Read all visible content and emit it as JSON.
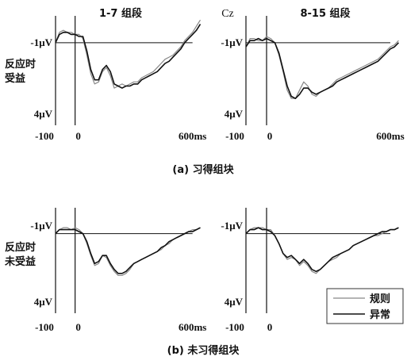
{
  "figure": {
    "channel_label": "Cz",
    "columns": [
      "1-7 组段",
      "8-15 组段"
    ],
    "rows": [
      {
        "label_line1": "反应时",
        "label_line2": "受益",
        "caption": "(a) 习得组块"
      },
      {
        "label_line1": "反应时",
        "label_line2": "未受益",
        "caption": "(b) 未习得组块"
      }
    ]
  },
  "chart_data": [
    {
      "type": "line",
      "panel": "row a, 1-7 组段",
      "ylabel_top": "-1μV",
      "ylabel_bottom": "4μV",
      "xtick_labels": [
        "-100",
        "0",
        "600ms"
      ],
      "xlim": [
        -100,
        650
      ],
      "ylim": [
        -1.3,
        4
      ],
      "series": [
        {
          "name": "规则",
          "color": "#888888",
          "x": [
            -100,
            -80,
            -60,
            -40,
            -20,
            0,
            20,
            40,
            60,
            80,
            100,
            120,
            140,
            160,
            180,
            200,
            220,
            240,
            260,
            280,
            300,
            320,
            340,
            360,
            380,
            400,
            420,
            440,
            460,
            480,
            500,
            520,
            540,
            560,
            580,
            600,
            620,
            640
          ],
          "y": [
            0,
            -0.5,
            -0.6,
            -0.5,
            -0.5,
            -0.4,
            -0.4,
            -0.2,
            0.6,
            1.5,
            2,
            1.9,
            1.4,
            1.2,
            1.6,
            2.2,
            2.1,
            2,
            2.1,
            2,
            1.9,
            1.9,
            1.7,
            1.6,
            1.5,
            1.4,
            1.2,
            1,
            0.8,
            0.7,
            0.6,
            0.4,
            0.2,
            -0.1,
            -0.3,
            -0.5,
            -0.8,
            -1.1
          ]
        },
        {
          "name": "异常",
          "color": "#111111",
          "x": [
            -100,
            -80,
            -60,
            -40,
            -20,
            0,
            20,
            40,
            60,
            80,
            100,
            120,
            140,
            160,
            180,
            200,
            220,
            240,
            260,
            280,
            300,
            320,
            340,
            360,
            380,
            400,
            420,
            440,
            460,
            480,
            500,
            520,
            540,
            560,
            580,
            600,
            620,
            640
          ],
          "y": [
            0,
            -0.4,
            -0.5,
            -0.5,
            -0.4,
            -0.4,
            -0.3,
            -0.3,
            0.4,
            1.3,
            1.8,
            1.8,
            1.3,
            1.1,
            1.4,
            2,
            2.1,
            2.2,
            2.1,
            2.1,
            2,
            2,
            1.8,
            1.7,
            1.6,
            1.5,
            1.4,
            1.2,
            1,
            0.9,
            0.7,
            0.5,
            0.3,
            0,
            -0.2,
            -0.4,
            -0.6,
            -0.9
          ]
        }
      ]
    },
    {
      "type": "line",
      "panel": "row a, 8-15 组段",
      "ylabel_top": "-1μV",
      "ylabel_bottom": "4μV",
      "xtick_labels": [
        "-100",
        "0",
        "600ms"
      ],
      "xlim": [
        -100,
        650
      ],
      "ylim": [
        -1.3,
        4
      ],
      "series": [
        {
          "name": "规则",
          "color": "#888888",
          "x": [
            -100,
            -80,
            -60,
            -40,
            -20,
            0,
            20,
            40,
            60,
            80,
            100,
            120,
            140,
            160,
            180,
            200,
            220,
            240,
            260,
            280,
            300,
            320,
            340,
            360,
            380,
            400,
            420,
            440,
            460,
            480,
            500,
            520,
            540,
            560,
            580,
            600,
            620,
            640
          ],
          "y": [
            0.2,
            -0.2,
            -0.2,
            -0.1,
            -0.1,
            -0.3,
            -0.2,
            0,
            0.6,
            1.4,
            2.3,
            2.7,
            2.7,
            2.3,
            1.9,
            2.1,
            2.5,
            2.6,
            2.4,
            2.3,
            2.2,
            2,
            1.8,
            1.7,
            1.6,
            1.5,
            1.4,
            1.3,
            1.2,
            1.1,
            1,
            0.9,
            0.8,
            0.6,
            0.4,
            0.2,
            0.1,
            -0.1
          ]
        },
        {
          "name": "异常",
          "color": "#111111",
          "x": [
            -100,
            -80,
            -60,
            -40,
            -20,
            0,
            20,
            40,
            60,
            80,
            100,
            120,
            140,
            160,
            180,
            200,
            220,
            240,
            260,
            280,
            300,
            320,
            340,
            360,
            380,
            400,
            420,
            440,
            460,
            480,
            500,
            520,
            540,
            560,
            580,
            600,
            620,
            640
          ],
          "y": [
            0.2,
            -0.1,
            -0.1,
            -0.2,
            -0.1,
            -0.2,
            -0.1,
            0,
            0.5,
            1.3,
            2.1,
            2.6,
            2.7,
            2.5,
            2.2,
            2.2,
            2.4,
            2.5,
            2.4,
            2.3,
            2.2,
            2.1,
            1.9,
            1.8,
            1.7,
            1.6,
            1.5,
            1.4,
            1.3,
            1.2,
            1.1,
            1,
            0.9,
            0.7,
            0.5,
            0.3,
            0.2,
            0
          ]
        }
      ]
    },
    {
      "type": "line",
      "panel": "row b, 1-7 组段",
      "ylabel_top": "-1μV",
      "ylabel_bottom": "4μV",
      "xtick_labels": [
        "-100",
        "0",
        "600ms"
      ],
      "xlim": [
        -100,
        650
      ],
      "ylim": [
        -1.3,
        4
      ],
      "series": [
        {
          "name": "规则",
          "color": "#888888",
          "x": [
            -100,
            -80,
            -60,
            -40,
            -20,
            0,
            20,
            40,
            60,
            80,
            100,
            120,
            140,
            160,
            180,
            200,
            220,
            240,
            260,
            280,
            300,
            320,
            340,
            360,
            380,
            400,
            420,
            440,
            460,
            480,
            500,
            520,
            540,
            560,
            580,
            600,
            620,
            640
          ],
          "y": [
            0,
            -0.2,
            -0.3,
            -0.3,
            -0.2,
            -0.3,
            -0.2,
            0,
            0.5,
            1.1,
            1.6,
            1.5,
            1.1,
            1.2,
            1.6,
            1.9,
            2.1,
            2.1,
            2,
            1.8,
            1.5,
            1.4,
            1.3,
            1.2,
            1.1,
            1,
            0.9,
            0.8,
            0.6,
            0.5,
            0.3,
            0.2,
            0.1,
            0,
            -0.1,
            -0.2,
            -0.2,
            -0.3
          ]
        },
        {
          "name": "异常",
          "color": "#111111",
          "x": [
            -100,
            -80,
            -60,
            -40,
            -20,
            0,
            20,
            40,
            60,
            80,
            100,
            120,
            140,
            160,
            180,
            200,
            220,
            240,
            260,
            280,
            300,
            320,
            340,
            360,
            380,
            400,
            420,
            440,
            460,
            480,
            500,
            520,
            540,
            560,
            580,
            600,
            620,
            640
          ],
          "y": [
            0,
            -0.2,
            -0.2,
            -0.2,
            -0.2,
            -0.2,
            -0.1,
            0,
            0.4,
            1,
            1.5,
            1.4,
            1.1,
            1.1,
            1.5,
            1.8,
            2,
            2,
            1.9,
            1.7,
            1.5,
            1.4,
            1.3,
            1.2,
            1.1,
            1,
            0.9,
            0.7,
            0.6,
            0.4,
            0.3,
            0.2,
            0.1,
            0,
            -0.1,
            -0.1,
            -0.2,
            -0.3
          ]
        }
      ]
    },
    {
      "type": "line",
      "panel": "row b, 8-15 组段",
      "ylabel_top": "-1μV",
      "ylabel_bottom": "4μV",
      "xtick_labels": [
        "-100",
        "0"
      ],
      "xlim": [
        -100,
        650
      ],
      "ylim": [
        -1.3,
        4
      ],
      "series": [
        {
          "name": "规则",
          "color": "#888888",
          "x": [
            -100,
            -80,
            -60,
            -40,
            -20,
            0,
            20,
            40,
            60,
            80,
            100,
            120,
            140,
            160,
            180,
            200,
            220,
            240,
            260,
            280,
            300,
            320,
            340,
            360,
            380,
            400,
            420,
            440,
            460,
            480,
            500,
            520,
            540,
            560,
            580,
            600,
            620,
            640
          ],
          "y": [
            0,
            -0.2,
            -0.3,
            -0.3,
            -0.3,
            -0.2,
            -0.2,
            0.1,
            0.5,
            1,
            1.3,
            1.2,
            1.3,
            1.6,
            1.4,
            1.6,
            1.9,
            2,
            1.8,
            1.6,
            1.4,
            1.3,
            1.2,
            1,
            0.9,
            0.8,
            0.6,
            0.5,
            0.4,
            0.3,
            0.2,
            0.1,
            0.1,
            0,
            -0.1,
            -0.2,
            -0.2,
            -0.3
          ]
        },
        {
          "name": "异常",
          "color": "#111111",
          "x": [
            -100,
            -80,
            -60,
            -40,
            -20,
            0,
            20,
            40,
            60,
            80,
            100,
            120,
            140,
            160,
            180,
            200,
            220,
            240,
            260,
            280,
            300,
            320,
            340,
            360,
            380,
            400,
            420,
            440,
            460,
            480,
            500,
            520,
            540,
            560,
            580,
            600,
            620,
            640
          ],
          "y": [
            0,
            -0.2,
            -0.2,
            -0.3,
            -0.2,
            -0.2,
            -0.1,
            0.1,
            0.5,
            1,
            1.2,
            1.1,
            1.3,
            1.5,
            1.3,
            1.5,
            1.8,
            1.9,
            1.8,
            1.6,
            1.4,
            1.2,
            1.1,
            1,
            0.9,
            0.8,
            0.6,
            0.5,
            0.4,
            0.3,
            0.2,
            0.1,
            0,
            -0.1,
            -0.1,
            -0.2,
            -0.2,
            -0.3
          ]
        }
      ]
    }
  ],
  "legend": {
    "entries": [
      {
        "label": "规则",
        "color": "#888888"
      },
      {
        "label": "异常",
        "color": "#111111"
      }
    ]
  }
}
